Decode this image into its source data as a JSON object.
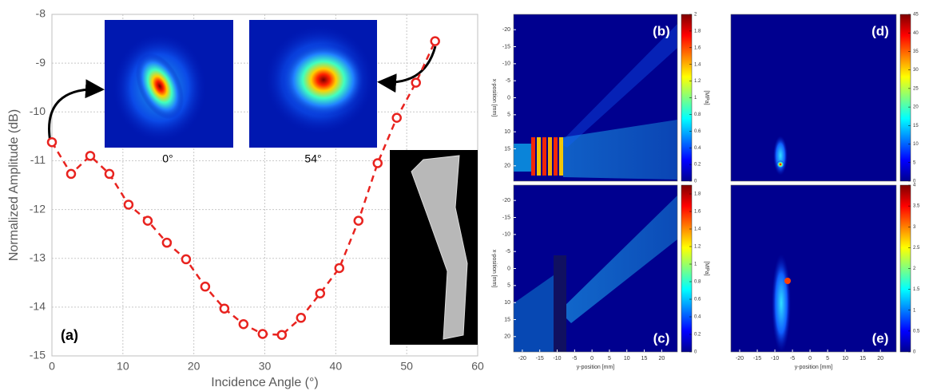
{
  "chart_data": [
    {
      "type": "line",
      "xlabel": "Incidence Angle (°)",
      "ylabel": "Normalized Amplitude (dB)",
      "x": [
        0,
        2.7,
        5.4,
        8.1,
        10.8,
        13.5,
        16.2,
        18.9,
        21.6,
        24.3,
        27,
        29.7,
        32.4,
        35.1,
        37.8,
        40.5,
        43.2,
        45.9,
        48.6,
        51.3,
        54
      ],
      "values": [
        -10.62,
        -11.27,
        -10.9,
        -11.27,
        -11.9,
        -12.23,
        -12.68,
        -13.02,
        -13.58,
        -14.03,
        -14.35,
        -14.55,
        -14.57,
        -14.22,
        -13.72,
        -13.2,
        -12.23,
        -11.05,
        -10.12,
        -9.4,
        -8.55
      ],
      "color": "#e8231f",
      "xlim": [
        0,
        60
      ],
      "ylim": [
        -15,
        -8
      ],
      "xticks": [
        0,
        10,
        20,
        30,
        40,
        50,
        60
      ],
      "yticks": [
        -15,
        -14,
        -13,
        -12,
        -11,
        -10,
        -9,
        -8
      ],
      "grid": true,
      "annotations": [
        "(a)",
        "0°",
        "54°"
      ]
    },
    {
      "type": "heatmap",
      "label": "(b)",
      "ylabel": "x-position [mm]",
      "colorbar_label": "[MPa]",
      "xlim": [
        -22.5,
        24.5
      ],
      "ylim": [
        -24.5,
        24.5
      ],
      "yreverse": true,
      "yticks": [
        -20,
        -15,
        -10,
        -5,
        0,
        5,
        10,
        15,
        20
      ],
      "clim": [
        0,
        2
      ],
      "cticks": [
        0,
        0.2,
        0.4,
        0.6,
        0.8,
        1,
        1.2,
        1.4,
        1.6,
        1.8,
        2
      ]
    },
    {
      "type": "heatmap",
      "label": "(c)",
      "ylabel": "x-position [mm]",
      "xlabel": "y-position [mm]",
      "colorbar_label": "[MPa]",
      "xlim": [
        -22.5,
        24.5
      ],
      "ylim": [
        -24.5,
        24.5
      ],
      "yreverse": true,
      "xticks": [
        -20,
        -15,
        -10,
        -5,
        0,
        5,
        10,
        15,
        20
      ],
      "yticks": [
        -20,
        -15,
        -10,
        -5,
        0,
        5,
        10,
        15,
        20
      ],
      "clim": [
        0,
        1.9
      ],
      "cticks": [
        0,
        0.2,
        0.4,
        0.6,
        0.8,
        1,
        1.2,
        1.4,
        1.6,
        1.8
      ]
    },
    {
      "type": "heatmap",
      "label": "(d)",
      "xlim": [
        -22.5,
        24.5
      ],
      "ylim": [
        -24.5,
        24.5
      ],
      "yreverse": true,
      "clim": [
        0,
        45
      ],
      "cticks": [
        0,
        5,
        10,
        15,
        20,
        25,
        30,
        35,
        40,
        45
      ]
    },
    {
      "type": "heatmap",
      "label": "(e)",
      "xlabel": "y-position [mm]",
      "xlim": [
        -22.5,
        24.5
      ],
      "ylim": [
        -24.5,
        24.5
      ],
      "yreverse": true,
      "xticks": [
        -20,
        -15,
        -10,
        -5,
        0,
        5,
        10,
        15,
        20
      ],
      "clim": [
        0,
        4
      ],
      "cticks": [
        0,
        0.5,
        1,
        1.5,
        2,
        2.5,
        3,
        3.5,
        4
      ]
    }
  ]
}
